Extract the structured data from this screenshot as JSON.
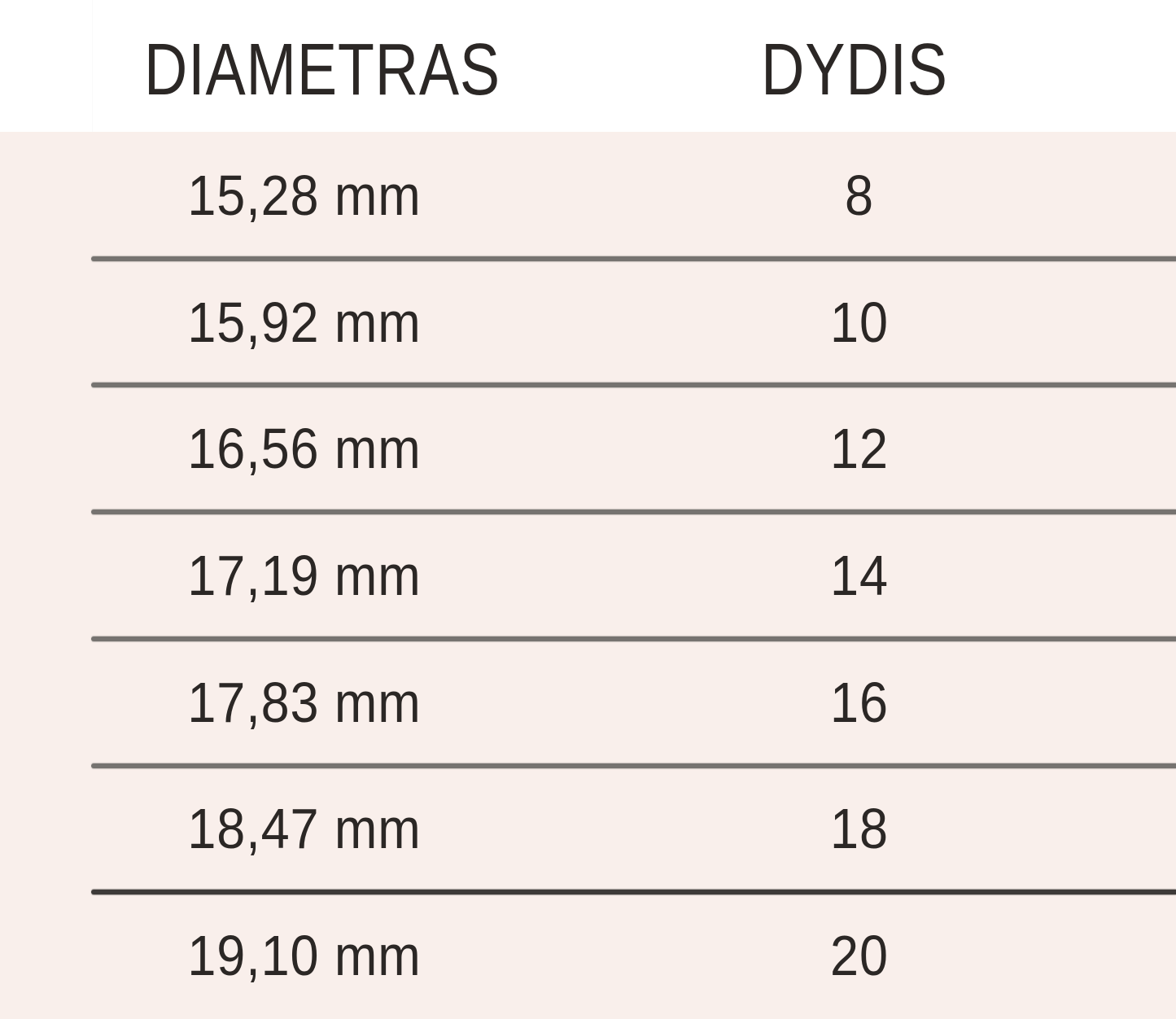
{
  "chart_data": {
    "type": "table",
    "title": "",
    "columns": [
      "DIAMETRAS",
      "DYDIS"
    ],
    "rows": [
      [
        "15,28 mm",
        "8"
      ],
      [
        "15,92 mm",
        "10"
      ],
      [
        "16,56 mm",
        "12"
      ],
      [
        "17,19 mm",
        "14"
      ],
      [
        "17,83 mm",
        "16"
      ],
      [
        "18,47 mm",
        "18"
      ],
      [
        "19,10 mm",
        "20"
      ]
    ]
  },
  "table": {
    "header": {
      "diameter_label": "DIAMETRAS",
      "size_label": "DYDIS"
    },
    "rows": [
      {
        "diameter": "15,28 mm",
        "size": "8"
      },
      {
        "diameter": "15,92 mm",
        "size": "10"
      },
      {
        "diameter": "16,56 mm",
        "size": "12"
      },
      {
        "diameter": "17,19 mm",
        "size": "14"
      },
      {
        "diameter": "17,83 mm",
        "size": "16"
      },
      {
        "diameter": "18,47 mm",
        "size": "18"
      },
      {
        "diameter": "19,10 mm",
        "size": "20"
      }
    ]
  },
  "colors": {
    "body_background": "#f9efeb",
    "header_background": "#ffffff",
    "text": "#2b2725",
    "separator": "#767370",
    "separator_dark": "#3d3a38"
  }
}
